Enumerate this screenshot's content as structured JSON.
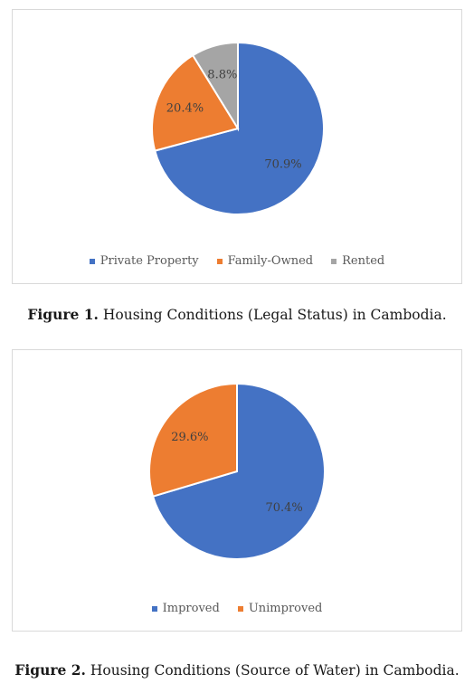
{
  "colors": {
    "blue": "#4472c4",
    "orange": "#ed7d31",
    "gray": "#a5a5a5"
  },
  "chart_data": [
    {
      "type": "pie",
      "title": "",
      "categories": [
        "Private Property",
        "Family-Owned",
        "Rented"
      ],
      "values": [
        70.9,
        20.4,
        8.8
      ],
      "labels": [
        "70.9%",
        "20.4%",
        "8.8%"
      ],
      "colors": [
        "#4472c4",
        "#ed7d31",
        "#a5a5a5"
      ],
      "legend": "bottom"
    },
    {
      "type": "pie",
      "title": "",
      "categories": [
        "Improved",
        "Unimproved"
      ],
      "values": [
        70.4,
        29.6
      ],
      "labels": [
        "70.4%",
        "29.6%"
      ],
      "colors": [
        "#4472c4",
        "#ed7d31"
      ],
      "legend": "bottom"
    }
  ],
  "captions": [
    {
      "label": "Figure 1.",
      "text": "Housing Conditions (Legal Status) in Cambodia."
    },
    {
      "label": "Figure 2.",
      "text": "Housing Conditions (Source of Water) in Cambodia."
    }
  ]
}
